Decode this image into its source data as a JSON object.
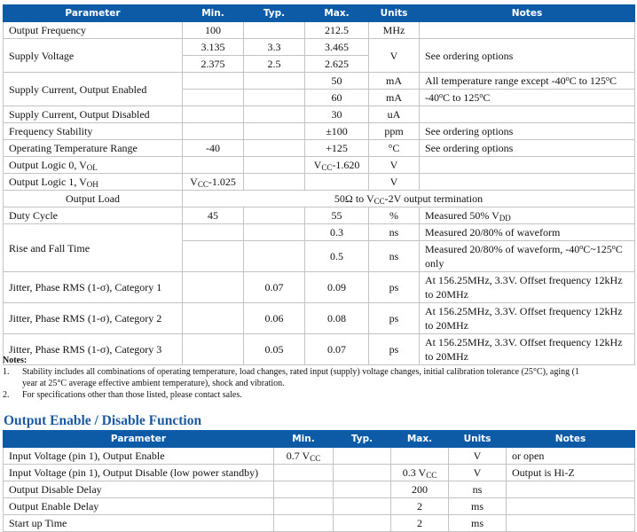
{
  "table1": {
    "headers": [
      "Parameter",
      "Min.",
      "Typ.",
      "Max.",
      "Units",
      "Notes"
    ],
    "rows": [
      [
        {
          "p": [
            "Output Frequency"
          ]
        },
        {
          "p": [
            "100"
          ]
        },
        {
          "p": [
            ""
          ]
        },
        {
          "p": [
            "212.5"
          ]
        },
        {
          "p": [
            "MHz"
          ]
        },
        {
          "p": [
            ""
          ],
          "n": 1
        }
      ],
      [
        {
          "p": [
            "Supply Voltage"
          ],
          "rs": 2
        },
        {
          "p": [
            "3.135"
          ]
        },
        {
          "p": [
            "3.3"
          ]
        },
        {
          "p": [
            "3.465"
          ]
        },
        {
          "p": [
            "V"
          ],
          "rs": 2
        },
        {
          "p": [
            "See ordering options"
          ],
          "rs": 2,
          "n": 1
        }
      ],
      [
        {
          "p": [
            "2.375"
          ]
        },
        {
          "p": [
            "2.5"
          ]
        },
        {
          "p": [
            "2.625"
          ]
        }
      ],
      [
        {
          "p": [
            "Supply Current, Output Enabled"
          ],
          "rs": 2
        },
        {
          "p": [
            ""
          ]
        },
        {
          "p": [
            ""
          ]
        },
        {
          "p": [
            "50"
          ]
        },
        {
          "p": [
            "mA"
          ]
        },
        {
          "p": [
            "All temperature range except -40",
            {
              "sup": "o"
            },
            "C to 125",
            {
              "sup": "o"
            },
            "C"
          ],
          "n": 1
        }
      ],
      [
        {
          "p": [
            ""
          ]
        },
        {
          "p": [
            ""
          ]
        },
        {
          "p": [
            "60"
          ]
        },
        {
          "p": [
            "mA"
          ]
        },
        {
          "p": [
            "-40",
            {
              "sup": "o"
            },
            "C to 125",
            {
              "sup": "o"
            },
            "C"
          ],
          "n": 1
        }
      ],
      [
        {
          "p": [
            "Supply Current, Output Disabled"
          ]
        },
        {
          "p": [
            ""
          ]
        },
        {
          "p": [
            ""
          ]
        },
        {
          "p": [
            "30"
          ]
        },
        {
          "p": [
            "uA"
          ]
        },
        {
          "p": [
            ""
          ],
          "n": 1
        }
      ],
      [
        {
          "p": [
            "Frequency Stability"
          ]
        },
        {
          "p": [
            ""
          ]
        },
        {
          "p": [
            ""
          ]
        },
        {
          "p": [
            "±100"
          ]
        },
        {
          "p": [
            "ppm"
          ]
        },
        {
          "p": [
            "See ordering options"
          ],
          "n": 1
        }
      ],
      [
        {
          "p": [
            "Operating Temperature Range"
          ]
        },
        {
          "p": [
            "-40"
          ]
        },
        {
          "p": [
            ""
          ]
        },
        {
          "p": [
            "+125"
          ]
        },
        {
          "p": [
            "°C"
          ]
        },
        {
          "p": [
            "See ordering options"
          ],
          "n": 1
        }
      ],
      [
        {
          "p": [
            "Output Logic 0, V",
            {
              "sub": "OL"
            }
          ]
        },
        {
          "p": [
            ""
          ]
        },
        {
          "p": [
            ""
          ]
        },
        {
          "p": [
            "V",
            {
              "sub": "CC"
            },
            "-1.620"
          ]
        },
        {
          "p": [
            "V"
          ]
        },
        {
          "p": [
            ""
          ],
          "n": 1
        }
      ],
      [
        {
          "p": [
            "Output Logic 1, V",
            {
              "sub": "OH"
            }
          ]
        },
        {
          "p": [
            "V",
            {
              "sub": "CC"
            },
            "-1.025"
          ]
        },
        {
          "p": [
            ""
          ]
        },
        {
          "p": [
            ""
          ]
        },
        {
          "p": [
            "V"
          ]
        },
        {
          "p": [
            ""
          ],
          "n": 1
        }
      ],
      [
        {
          "p": [
            "Output Load"
          ]
        },
        {
          "p": [
            "50Ω to V",
            {
              "sub": "CC"
            },
            "-2V output termination"
          ],
          "cs": 5
        }
      ],
      [
        {
          "p": [
            "Duty Cycle"
          ]
        },
        {
          "p": [
            "45"
          ]
        },
        {
          "p": [
            ""
          ]
        },
        {
          "p": [
            "55"
          ]
        },
        {
          "p": [
            "%"
          ]
        },
        {
          "p": [
            "Measured 50% V",
            {
              "sub": "DD"
            }
          ],
          "n": 1
        }
      ],
      [
        {
          "p": [
            "Rise and Fall Time"
          ],
          "rs": 2
        },
        {
          "p": [
            ""
          ]
        },
        {
          "p": [
            ""
          ]
        },
        {
          "p": [
            "0.3"
          ]
        },
        {
          "p": [
            "ns"
          ]
        },
        {
          "p": [
            "Measured 20/80% of waveform"
          ],
          "n": 1
        }
      ],
      [
        {
          "p": [
            ""
          ]
        },
        {
          "p": [
            ""
          ]
        },
        {
          "p": [
            "0.5"
          ]
        },
        {
          "p": [
            "ns"
          ]
        },
        {
          "p": [
            "Measured 20/80% of waveform, -40",
            {
              "sup": "o"
            },
            "C~125",
            {
              "sup": "o"
            },
            "C only"
          ],
          "n": 1
        }
      ],
      [
        {
          "p": [
            "Jitter, Phase RMS (1-σ), Category 1"
          ]
        },
        {
          "p": [
            ""
          ]
        },
        {
          "p": [
            "0.07"
          ]
        },
        {
          "p": [
            "0.09"
          ]
        },
        {
          "p": [
            "ps"
          ]
        },
        {
          "p": [
            "At 156.25MHz, 3.3V. Offset frequency 12kHz to 20MHz"
          ],
          "n": 1
        }
      ],
      [
        {
          "p": [
            "Jitter, Phase RMS (1-σ), Category 2"
          ]
        },
        {
          "p": [
            ""
          ]
        },
        {
          "p": [
            "0.06"
          ]
        },
        {
          "p": [
            "0.08"
          ]
        },
        {
          "p": [
            "ps"
          ]
        },
        {
          "p": [
            "At 156.25MHz, 3.3V. Offset frequency 12kHz to 20MHz"
          ],
          "n": 1
        }
      ],
      [
        {
          "p": [
            "Jitter, Phase RMS (1-σ), Category 3"
          ]
        },
        {
          "p": [
            ""
          ]
        },
        {
          "p": [
            "0.05"
          ]
        },
        {
          "p": [
            "0.07"
          ]
        },
        {
          "p": [
            "ps"
          ]
        },
        {
          "p": [
            "At 156.25MHz, 3.3V. Offset frequency 12kHz to 20MHz"
          ],
          "n": 1
        }
      ]
    ]
  },
  "notes": {
    "heading": "Notes:",
    "items": [
      {
        "num": "1.",
        "text": "Stability includes all combinations of operating temperature, load changes, rated input (supply) voltage changes, initial calibration tolerance (25°C), aging (1 year at 25°C average effective ambient temperature), shock and vibration."
      },
      {
        "num": "2.",
        "text": "For specifications other than those listed, please contact sales."
      }
    ]
  },
  "section2": {
    "title": "Output Enable / Disable Function"
  },
  "table2": {
    "headers": [
      "Parameter",
      "Min.",
      "Typ.",
      "Max.",
      "Units",
      "Notes"
    ],
    "rows": [
      [
        {
          "p": [
            "Input Voltage (pin 1), Output Enable"
          ]
        },
        {
          "p": [
            "0.7 V",
            {
              "sub": "CC"
            }
          ]
        },
        {
          "p": [
            ""
          ]
        },
        {
          "p": [
            ""
          ]
        },
        {
          "p": [
            "V"
          ]
        },
        {
          "p": [
            "or open"
          ],
          "n": 1
        }
      ],
      [
        {
          "p": [
            "Input Voltage (pin 1), Output Disable (low power standby)"
          ]
        },
        {
          "p": [
            ""
          ]
        },
        {
          "p": [
            ""
          ]
        },
        {
          "p": [
            "0.3 V",
            {
              "sub": "CC"
            }
          ]
        },
        {
          "p": [
            "V"
          ]
        },
        {
          "p": [
            "Output is Hi-Z"
          ],
          "n": 1
        }
      ],
      [
        {
          "p": [
            "Output Disable Delay"
          ]
        },
        {
          "p": [
            ""
          ]
        },
        {
          "p": [
            ""
          ]
        },
        {
          "p": [
            "200"
          ]
        },
        {
          "p": [
            "ns"
          ]
        },
        {
          "p": [
            ""
          ],
          "n": 1
        }
      ],
      [
        {
          "p": [
            "Output Enable Delay"
          ]
        },
        {
          "p": [
            ""
          ]
        },
        {
          "p": [
            ""
          ]
        },
        {
          "p": [
            "2"
          ]
        },
        {
          "p": [
            "ms"
          ]
        },
        {
          "p": [
            ""
          ],
          "n": 1
        }
      ],
      [
        {
          "p": [
            "Start up Time"
          ]
        },
        {
          "p": [
            ""
          ]
        },
        {
          "p": [
            ""
          ]
        },
        {
          "p": [
            "2"
          ]
        },
        {
          "p": [
            "ms"
          ]
        },
        {
          "p": [
            ""
          ],
          "n": 1
        }
      ]
    ]
  },
  "colors": {
    "header_bg": "#0d5aa7",
    "title": "#1c5aa0",
    "border": "#c4c4c4"
  }
}
